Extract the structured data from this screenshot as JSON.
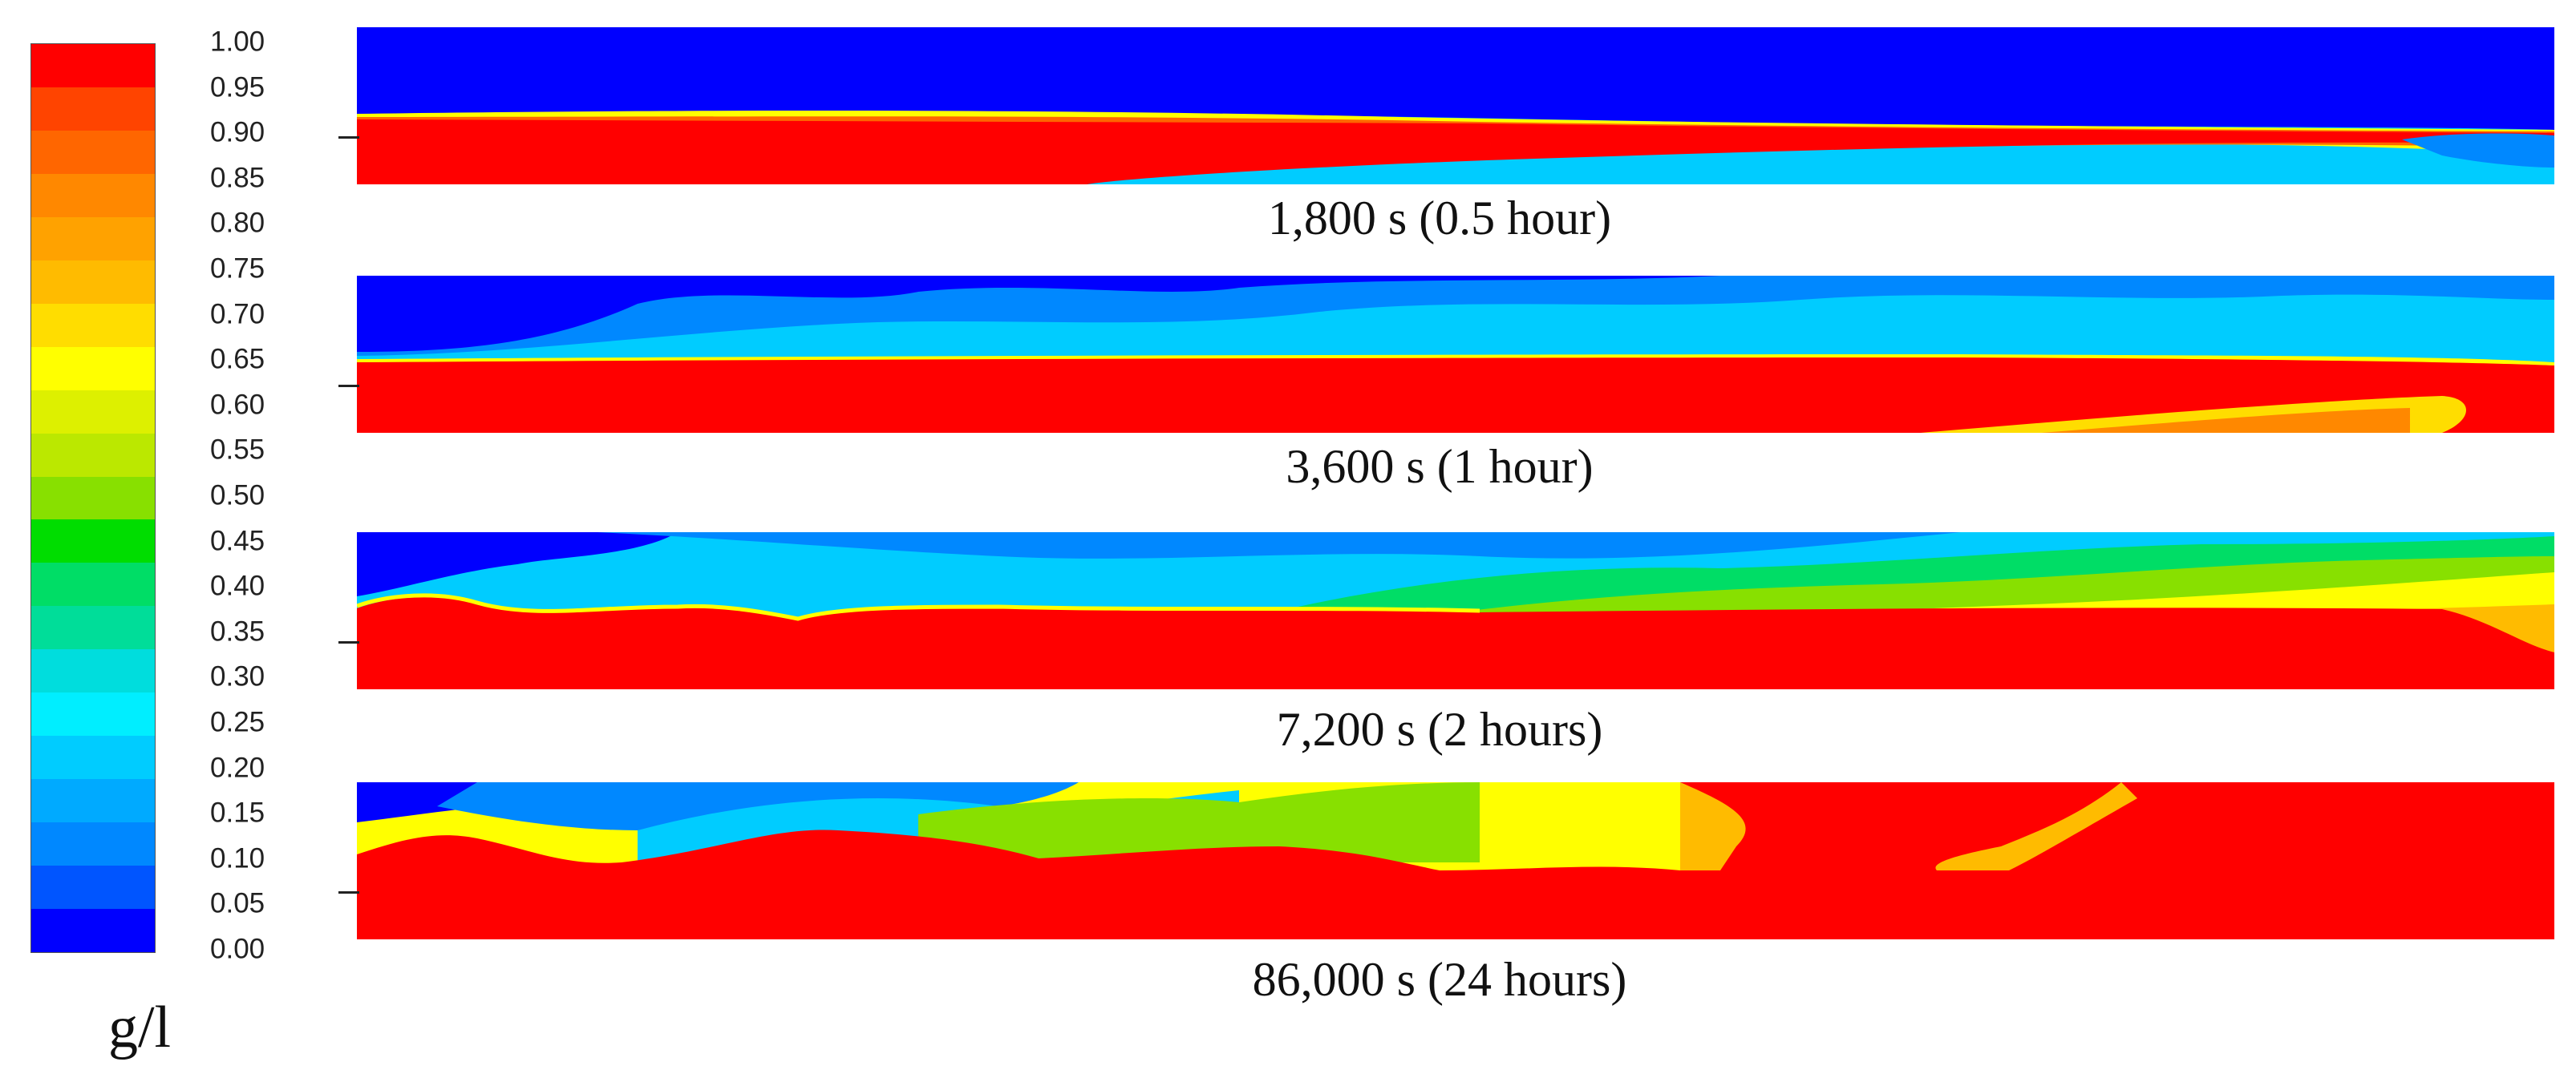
{
  "legend": {
    "unit": "g/l",
    "ticks": [
      "1.00",
      "0.95",
      "0.90",
      "0.85",
      "0.80",
      "0.75",
      "0.70",
      "0.65",
      "0.60",
      "0.55",
      "0.50",
      "0.45",
      "0.40",
      "0.35",
      "0.30",
      "0.25",
      "0.20",
      "0.15",
      "0.10",
      "0.05",
      "0.00"
    ],
    "colors": [
      "#ff0000",
      "#ff4400",
      "#ff6600",
      "#ff8800",
      "#ffa200",
      "#ffbb00",
      "#ffdd00",
      "#ffff00",
      "#ddf000",
      "#bbe800",
      "#88e000",
      "#00dd00",
      "#00dd66",
      "#00dd99",
      "#00dddd",
      "#00eeff",
      "#00ccff",
      "#00aaff",
      "#0088ff",
      "#0055ff",
      "#0000ff"
    ]
  },
  "panels": [
    {
      "caption": "1,800 s (0.5 hour)"
    },
    {
      "caption": "3,600 s (1 hour)"
    },
    {
      "caption": "7,200 s (2 hours)"
    },
    {
      "caption": "86,000 s (24 hours)"
    }
  ]
}
